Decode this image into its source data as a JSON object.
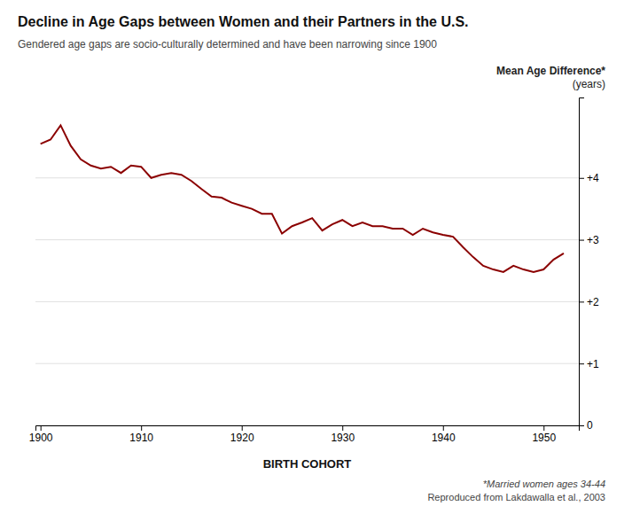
{
  "chart_data": {
    "type": "line",
    "title": "Decline in Age Gaps between Women and their Partners in the U.S.",
    "subtitle": "Gendered age gaps are socio-culturally determined and have been narrowing since 1900",
    "ylabel": [
      "Mean Age Difference*",
      "(years)"
    ],
    "xlabel": "BIRTH COHORT",
    "annotations": [
      "*Married women ages 34-44",
      "Reproduced from Lakdawalla et al., 2003"
    ],
    "color": "#8B0000",
    "x": [
      1900,
      1901,
      1902,
      1903,
      1904,
      1905,
      1906,
      1907,
      1908,
      1909,
      1910,
      1911,
      1912,
      1913,
      1914,
      1915,
      1916,
      1917,
      1918,
      1919,
      1920,
      1921,
      1922,
      1923,
      1924,
      1925,
      1926,
      1927,
      1928,
      1929,
      1930,
      1931,
      1932,
      1933,
      1934,
      1935,
      1936,
      1937,
      1938,
      1939,
      1940,
      1941,
      1942,
      1943,
      1944,
      1945,
      1946,
      1947,
      1948,
      1949,
      1950,
      1951,
      1952
    ],
    "values": [
      4.55,
      4.62,
      4.85,
      4.52,
      4.3,
      4.2,
      4.15,
      4.18,
      4.08,
      4.2,
      4.18,
      4.0,
      4.05,
      4.08,
      4.05,
      3.95,
      3.82,
      3.7,
      3.68,
      3.6,
      3.55,
      3.5,
      3.42,
      3.42,
      3.1,
      3.22,
      3.28,
      3.35,
      3.15,
      3.25,
      3.32,
      3.22,
      3.28,
      3.22,
      3.22,
      3.18,
      3.18,
      3.08,
      3.18,
      3.12,
      3.08,
      3.05,
      2.88,
      2.72,
      2.58,
      2.52,
      2.48,
      2.58,
      2.52,
      2.48,
      2.52,
      2.68,
      2.78
    ],
    "xlim": [
      1899.5,
      1953.5
    ],
    "xticks": [
      1900,
      1910,
      1920,
      1930,
      1940,
      1950
    ],
    "ylim": [
      0,
      5.3
    ],
    "yticks": [
      0,
      {
        "value": 1,
        "label": "+1"
      },
      {
        "value": 2,
        "label": "+2"
      },
      {
        "value": 3,
        "label": "+3"
      },
      {
        "value": 4,
        "label": "+4"
      }
    ],
    "grid": true
  }
}
